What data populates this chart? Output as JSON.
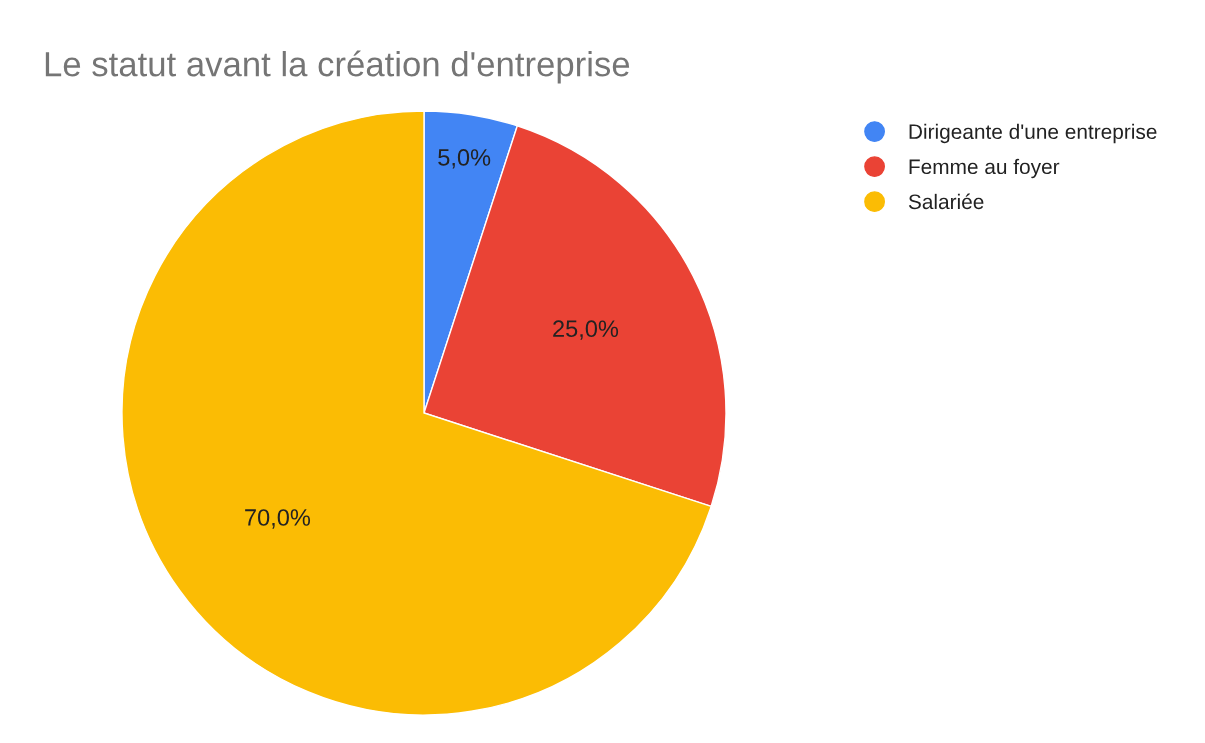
{
  "chart_data": {
    "type": "pie",
    "title": "Le statut avant la création d'entreprise",
    "categories": [
      "Dirigeante d'une entreprise",
      "Femme au foyer",
      "Salariée"
    ],
    "values": [
      5,
      25,
      70
    ],
    "colors": [
      "#4285f4",
      "#ea4335",
      "#fbbc04"
    ],
    "value_labels": [
      "5,0%",
      "25,0%",
      "70,0%"
    ],
    "legend": "top right"
  }
}
